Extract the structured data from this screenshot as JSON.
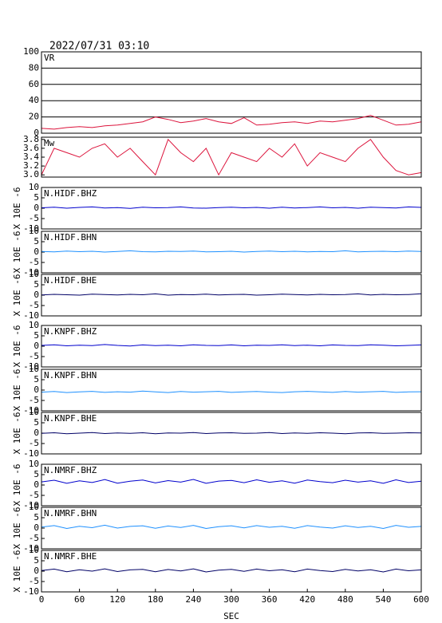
{
  "chart_data": [
    {
      "type": "line",
      "title": "2022/07/31 03:10",
      "label": "VR",
      "x": [
        0,
        20,
        40,
        60,
        80,
        100,
        120,
        140,
        160,
        180,
        200,
        220,
        240,
        260,
        280,
        300,
        320,
        340,
        360,
        380,
        400,
        420,
        440,
        460,
        480,
        500,
        520,
        540,
        560,
        580,
        600
      ],
      "series": [
        {
          "color": "#dc143c",
          "values": [
            6,
            5,
            7,
            8,
            7,
            9,
            10,
            12,
            14,
            20,
            17,
            13,
            15,
            18,
            14,
            12,
            19,
            10,
            11,
            13,
            14,
            12,
            15,
            14,
            16,
            18,
            22,
            16,
            10,
            11,
            14
          ]
        }
      ],
      "xlim": [
        0,
        600
      ],
      "ylim": [
        0,
        100
      ],
      "yticks": [
        0,
        20,
        40,
        60,
        80,
        100
      ],
      "grid": true
    },
    {
      "type": "line",
      "label": "Mw",
      "x": [
        0,
        20,
        40,
        60,
        80,
        100,
        120,
        140,
        160,
        180,
        200,
        220,
        240,
        260,
        280,
        300,
        320,
        340,
        360,
        380,
        400,
        420,
        440,
        460,
        480,
        500,
        520,
        540,
        560,
        580,
        600
      ],
      "series": [
        {
          "color": "#dc143c",
          "values": [
            3.0,
            3.6,
            3.5,
            3.4,
            3.6,
            3.7,
            3.4,
            3.6,
            3.3,
            3.0,
            3.8,
            3.5,
            3.3,
            3.6,
            3.0,
            3.5,
            3.4,
            3.3,
            3.6,
            3.4,
            3.7,
            3.2,
            3.5,
            3.4,
            3.3,
            3.6,
            3.8,
            3.4,
            3.1,
            3.0,
            3.05
          ]
        }
      ],
      "xlim": [
        0,
        600
      ],
      "ylim": [
        2.95,
        3.85
      ],
      "yticks": [
        {
          "value": 3,
          "label": "3.0"
        },
        3.2,
        3.4,
        3.6,
        3.8
      ],
      "grid": false
    },
    {
      "type": "line",
      "label": "N.HIDF.BHZ",
      "ylabel": "X 10E -6",
      "x": [
        0,
        20,
        40,
        60,
        80,
        100,
        120,
        140,
        160,
        180,
        200,
        220,
        240,
        260,
        280,
        300,
        320,
        340,
        360,
        380,
        400,
        420,
        440,
        460,
        480,
        500,
        520,
        540,
        560,
        580,
        600
      ],
      "series": [
        {
          "color": "#0000cd",
          "values": [
            0.2,
            0.5,
            0.0,
            0.4,
            0.6,
            0.1,
            0.3,
            -0.1,
            0.5,
            0.2,
            0.3,
            0.6,
            0.1,
            0.0,
            0.3,
            0.5,
            0.2,
            0.4,
            0.0,
            0.5,
            0.1,
            0.3,
            0.6,
            0.2,
            0.4,
            0.0,
            0.5,
            0.3,
            0.1,
            0.6,
            0.4
          ]
        }
      ],
      "xlim": [
        0,
        600
      ],
      "ylim": [
        -10,
        10
      ],
      "yticks": [
        -10,
        -5,
        0,
        5,
        10
      ],
      "grid": false
    },
    {
      "type": "line",
      "label": "N.HIDF.BHN",
      "ylabel": "X 10E -6",
      "x": [
        0,
        20,
        40,
        60,
        80,
        100,
        120,
        140,
        160,
        180,
        200,
        220,
        240,
        260,
        280,
        300,
        320,
        340,
        360,
        380,
        400,
        420,
        440,
        460,
        480,
        500,
        520,
        540,
        560,
        580,
        600
      ],
      "series": [
        {
          "color": "#1e90ff",
          "values": [
            0.3,
            0.1,
            0.5,
            0.2,
            0.4,
            0.0,
            0.3,
            0.6,
            0.2,
            0.1,
            0.4,
            0.3,
            0.5,
            0.1,
            0.2,
            0.4,
            0.0,
            0.3,
            0.5,
            0.2,
            0.4,
            0.1,
            0.3,
            0.2,
            0.6,
            0.1,
            0.3,
            0.4,
            0.2,
            0.5,
            0.3
          ]
        }
      ],
      "xlim": [
        0,
        600
      ],
      "ylim": [
        -10,
        10
      ],
      "yticks": [
        -10,
        -5,
        0,
        5,
        10
      ],
      "grid": false
    },
    {
      "type": "line",
      "label": "N.HIDF.BHE",
      "ylabel": "X 10E -6",
      "x": [
        0,
        20,
        40,
        60,
        80,
        100,
        120,
        140,
        160,
        180,
        200,
        220,
        240,
        260,
        280,
        300,
        320,
        340,
        360,
        380,
        400,
        420,
        440,
        460,
        480,
        500,
        520,
        540,
        560,
        580,
        600
      ],
      "series": [
        {
          "color": "#000066",
          "values": [
            0.1,
            0.4,
            0.2,
            0.0,
            0.5,
            0.3,
            0.1,
            0.4,
            0.2,
            0.6,
            0.0,
            0.3,
            0.2,
            0.5,
            0.1,
            0.3,
            0.4,
            0.0,
            0.2,
            0.5,
            0.3,
            0.1,
            0.4,
            0.2,
            0.3,
            0.6,
            0.1,
            0.4,
            0.2,
            0.3,
            0.7
          ]
        }
      ],
      "xlim": [
        0,
        600
      ],
      "ylim": [
        -10,
        10
      ],
      "yticks": [
        -10,
        -5,
        0,
        5,
        10
      ],
      "grid": false
    },
    {
      "type": "line",
      "label": "N.KNPF.BHZ",
      "ylabel": "X 10E -6",
      "x": [
        0,
        20,
        40,
        60,
        80,
        100,
        120,
        140,
        160,
        180,
        200,
        220,
        240,
        260,
        280,
        300,
        320,
        340,
        360,
        380,
        400,
        420,
        440,
        460,
        480,
        500,
        520,
        540,
        560,
        580,
        600
      ],
      "series": [
        {
          "color": "#0000cd",
          "values": [
            0.4,
            0.7,
            0.2,
            0.5,
            0.3,
            0.8,
            0.4,
            0.1,
            0.6,
            0.3,
            0.5,
            0.2,
            0.7,
            0.4,
            0.3,
            0.6,
            0.2,
            0.5,
            0.4,
            0.7,
            0.3,
            0.5,
            0.2,
            0.6,
            0.4,
            0.3,
            0.7,
            0.5,
            0.2,
            0.4,
            0.6
          ]
        }
      ],
      "xlim": [
        0,
        600
      ],
      "ylim": [
        -10,
        10
      ],
      "yticks": [
        -10,
        -5,
        0,
        5,
        10
      ],
      "grid": false
    },
    {
      "type": "line",
      "label": "N.KNPF.BHN",
      "ylabel": "X 10E -6",
      "x": [
        0,
        20,
        40,
        60,
        80,
        100,
        120,
        140,
        160,
        180,
        200,
        220,
        240,
        260,
        280,
        300,
        320,
        340,
        360,
        380,
        400,
        420,
        440,
        460,
        480,
        500,
        520,
        540,
        560,
        580,
        600
      ],
      "series": [
        {
          "color": "#1e90ff",
          "values": [
            -1.0,
            -0.7,
            -1.2,
            -0.9,
            -0.6,
            -1.1,
            -0.8,
            -1.0,
            -0.5,
            -0.9,
            -1.2,
            -0.7,
            -1.0,
            -0.8,
            -0.6,
            -1.1,
            -0.9,
            -0.7,
            -1.0,
            -1.2,
            -0.8,
            -0.6,
            -0.9,
            -1.1,
            -0.7,
            -1.0,
            -0.8,
            -0.6,
            -1.1,
            -0.9,
            -0.8
          ]
        }
      ],
      "xlim": [
        0,
        600
      ],
      "ylim": [
        -10,
        10
      ],
      "yticks": [
        -10,
        -5,
        0,
        5,
        10
      ],
      "grid": false
    },
    {
      "type": "line",
      "label": "N.KNPF.BHE",
      "ylabel": "X 10E -6",
      "x": [
        0,
        20,
        40,
        60,
        80,
        100,
        120,
        140,
        160,
        180,
        200,
        220,
        240,
        260,
        280,
        300,
        320,
        340,
        360,
        380,
        400,
        420,
        440,
        460,
        480,
        500,
        520,
        540,
        560,
        580,
        600
      ],
      "series": [
        {
          "color": "#000066",
          "values": [
            -0.1,
            0.2,
            -0.3,
            0.0,
            0.3,
            -0.2,
            0.1,
            -0.1,
            0.2,
            -0.3,
            0.1,
            0.0,
            0.3,
            -0.2,
            0.1,
            0.2,
            -0.1,
            0.0,
            0.3,
            -0.2,
            0.1,
            -0.1,
            0.2,
            0.0,
            -0.3,
            0.1,
            0.2,
            -0.1,
            0.0,
            0.2,
            0.1
          ]
        }
      ],
      "xlim": [
        0,
        600
      ],
      "ylim": [
        -10,
        10
      ],
      "yticks": [
        -10,
        -5,
        0,
        5,
        10
      ],
      "grid": false
    },
    {
      "type": "line",
      "label": "N.NMRF.BHZ",
      "ylabel": "X 10E -6",
      "x": [
        0,
        20,
        40,
        60,
        80,
        100,
        120,
        140,
        160,
        180,
        200,
        220,
        240,
        260,
        280,
        300,
        320,
        340,
        360,
        380,
        400,
        420,
        440,
        460,
        480,
        500,
        520,
        540,
        560,
        580,
        600
      ],
      "series": [
        {
          "color": "#0000cd",
          "values": [
            1.5,
            2.3,
            0.8,
            2.0,
            1.2,
            2.6,
            0.9,
            1.8,
            2.4,
            1.0,
            2.1,
            1.4,
            2.7,
            0.8,
            1.9,
            2.2,
            1.1,
            2.5,
            1.3,
            2.0,
            0.9,
            2.4,
            1.6,
            1.1,
            2.3,
            1.4,
            2.0,
            0.8,
            2.5,
            1.2,
            1.8
          ]
        }
      ],
      "xlim": [
        0,
        600
      ],
      "ylim": [
        -10,
        10
      ],
      "yticks": [
        -10,
        -5,
        0,
        5,
        10
      ],
      "grid": false
    },
    {
      "type": "line",
      "label": "N.NMRF.BHN",
      "ylabel": "X 10E -6",
      "x": [
        0,
        20,
        40,
        60,
        80,
        100,
        120,
        140,
        160,
        180,
        200,
        220,
        240,
        260,
        280,
        300,
        320,
        340,
        360,
        380,
        400,
        420,
        440,
        460,
        480,
        500,
        520,
        540,
        560,
        580,
        600
      ],
      "series": [
        {
          "color": "#1e90ff",
          "values": [
            0.5,
            1.2,
            -0.2,
            0.9,
            0.2,
            1.4,
            0.0,
            0.8,
            1.1,
            -0.1,
            1.0,
            0.3,
            1.3,
            -0.2,
            0.7,
            1.1,
            0.1,
            1.2,
            0.4,
            0.9,
            -0.1,
            1.2,
            0.5,
            0.0,
            1.1,
            0.3,
            0.9,
            -0.2,
            1.3,
            0.4,
            0.8
          ]
        }
      ],
      "xlim": [
        0,
        600
      ],
      "ylim": [
        -10,
        10
      ],
      "yticks": [
        -10,
        -5,
        0,
        5,
        10
      ],
      "grid": false
    },
    {
      "type": "line",
      "label": "N.NMRF.BHE",
      "ylabel": "X 10E -6",
      "x": [
        0,
        20,
        40,
        60,
        80,
        100,
        120,
        140,
        160,
        180,
        200,
        220,
        240,
        260,
        280,
        300,
        320,
        340,
        360,
        380,
        400,
        420,
        440,
        460,
        480,
        500,
        520,
        540,
        560,
        580,
        600
      ],
      "series": [
        {
          "color": "#000066",
          "values": [
            0.3,
            1.0,
            -0.3,
            0.7,
            0.0,
            1.1,
            -0.2,
            0.6,
            0.9,
            -0.3,
            0.8,
            0.1,
            1.1,
            -0.4,
            0.5,
            0.9,
            -0.1,
            1.0,
            0.2,
            0.7,
            -0.3,
            1.0,
            0.3,
            -0.2,
            0.9,
            0.1,
            0.7,
            -0.4,
            1.0,
            0.2,
            0.6
          ]
        }
      ],
      "xlim": [
        0,
        600
      ],
      "ylim": [
        -10,
        10
      ],
      "yticks": [
        -10,
        -5,
        0,
        5,
        10
      ],
      "xticks": [
        0,
        60,
        120,
        180,
        240,
        300,
        360,
        420,
        480,
        540,
        600
      ],
      "xlabel": "SEC",
      "grid": false
    }
  ]
}
